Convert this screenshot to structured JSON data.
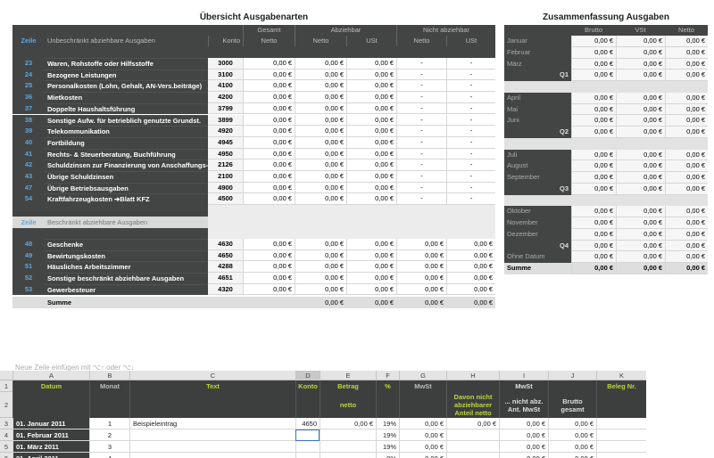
{
  "overview": {
    "title": "Übersicht Ausgabenarten",
    "group_headers": [
      "Gesamt",
      "Abziehbar",
      "Nicht abziehbar"
    ],
    "section1": {
      "zeile": "Zeile",
      "label": "Unbeschränkt abziehbare Ausgaben",
      "columns": [
        "Konto",
        "Netto",
        "Netto",
        "USt",
        "Netto",
        "USt"
      ],
      "rows": [
        [
          "23",
          "Waren, Rohstoffe oder Hilfsstoffe",
          "3000",
          "0,00 €",
          "0,00 €",
          "0,00 €",
          "-",
          "-"
        ],
        [
          "24",
          "Bezogene Leistungen",
          "3100",
          "0,00 €",
          "0,00 €",
          "0,00 €",
          "-",
          "-"
        ],
        [
          "25",
          "Personalkosten (Lohn, Gehalt, AN-Vers.beiträge)",
          "4100",
          "0,00 €",
          "0,00 €",
          "0,00 €",
          "-",
          "-"
        ],
        [
          "36",
          "Mietkosten",
          "4200",
          "0,00 €",
          "0,00 €",
          "0,00 €",
          "-",
          "-"
        ],
        [
          "37",
          "Doppelte Haushaltsführung",
          "3799",
          "0,00 €",
          "0,00 €",
          "0,00 €",
          "-",
          "-"
        ],
        [
          "38",
          "Sonstige Aufw. für betrieblich genutzte Grundst.",
          "3899",
          "0,00 €",
          "0,00 €",
          "0,00 €",
          "-",
          "-"
        ],
        [
          "39",
          "Telekommunikation",
          "4920",
          "0,00 €",
          "0,00 €",
          "0,00 €",
          "-",
          "-"
        ],
        [
          "40",
          "Fortbildung",
          "4945",
          "0,00 €",
          "0,00 €",
          "0,00 €",
          "-",
          "-"
        ],
        [
          "41",
          "Rechts- & Steuerberatung, Buchführung",
          "4950",
          "0,00 €",
          "0,00 €",
          "0,00 €",
          "-",
          "-"
        ],
        [
          "42",
          "Schuldzinsen zur Finanzierung von Anschaffungs-",
          "2126",
          "0,00 €",
          "0,00 €",
          "0,00 €",
          "-",
          "-"
        ],
        [
          "43",
          "Übrige Schuldzinsen",
          "2100",
          "0,00 €",
          "0,00 €",
          "0,00 €",
          "-",
          "-"
        ],
        [
          "47",
          "Übrige Betriebsausgaben",
          "4900",
          "0,00 €",
          "0,00 €",
          "0,00 €",
          "-",
          "-"
        ],
        [
          "54",
          "Kraftfahrzeugkosten    ➔Blatt KFZ",
          "4500",
          "0,00 €",
          "0,00 €",
          "0,00 €",
          "-",
          "-"
        ]
      ]
    },
    "section2": {
      "zeile": "Zeile",
      "label": "Beschränkt abziehbare Ausgaben",
      "rows": [
        [
          "48",
          "Geschenke",
          "4630",
          "0,00 €",
          "0,00 €",
          "0,00 €",
          "0,00 €",
          "0,00 €"
        ],
        [
          "49",
          "Bewirtungskosten",
          "4650",
          "0,00 €",
          "0,00 €",
          "0,00 €",
          "0,00 €",
          "0,00 €"
        ],
        [
          "51",
          "Häusliches Arbeitszimmer",
          "4288",
          "0,00 €",
          "0,00 €",
          "0,00 €",
          "0,00 €",
          "0,00 €"
        ],
        [
          "52",
          "Sonstige beschränkt abziehbare Ausgaben",
          "4651",
          "0,00 €",
          "0,00 €",
          "0,00 €",
          "0,00 €",
          "0,00 €"
        ],
        [
          "53",
          "Gewerbesteuer",
          "4320",
          "0,00 €",
          "0,00 €",
          "0,00 €",
          "0,00 €",
          "0,00 €"
        ]
      ]
    },
    "sum": {
      "label": "Summe",
      "values": [
        "0,00 €",
        "0,00 €",
        "0,00 €",
        "0,00 €"
      ]
    }
  },
  "summary": {
    "title": "Zusammenfassung Ausgaben",
    "columns": [
      "Brutto",
      "VSt",
      "Netto"
    ],
    "rows": [
      [
        "Januar",
        "0,00 €",
        "0,00 €",
        "0,00 €"
      ],
      [
        "Februar",
        "0,00 €",
        "0,00 €",
        "0,00 €"
      ],
      [
        "März",
        "0,00 €",
        "0,00 €",
        "0,00 €"
      ],
      [
        "Q1",
        "0,00 €",
        "0,00 €",
        "0,00 €"
      ],
      null,
      [
        "April",
        "0,00 €",
        "0,00 €",
        "0,00 €"
      ],
      [
        "Mai",
        "0,00 €",
        "0,00 €",
        "0,00 €"
      ],
      [
        "Juni",
        "0,00 €",
        "0,00 €",
        "0,00 €"
      ],
      [
        "Q2",
        "0,00 €",
        "0,00 €",
        "0,00 €"
      ],
      null,
      [
        "Juli",
        "0,00 €",
        "0,00 €",
        "0,00 €"
      ],
      [
        "August",
        "0,00 €",
        "0,00 €",
        "0,00 €"
      ],
      [
        "September",
        "0,00 €",
        "0,00 €",
        "0,00 €"
      ],
      [
        "Q3",
        "0,00 €",
        "0,00 €",
        "0,00 €"
      ],
      null,
      [
        "Oktober",
        "0,00 €",
        "0,00 €",
        "0,00 €"
      ],
      [
        "November",
        "0,00 €",
        "0,00 €",
        "0,00 €"
      ],
      [
        "Dezember",
        "0,00 €",
        "0,00 €",
        "0,00 €"
      ],
      [
        "Q4",
        "0,00 €",
        "0,00 €",
        "0,00 €"
      ],
      [
        "Ohne Datum",
        "0,00 €",
        "0,00 €",
        "0,00 €"
      ],
      [
        "Summe",
        "0,00 €",
        "0,00 €",
        "0,00 €"
      ]
    ]
  },
  "sheet": {
    "hint": "Neue Zeile einfügen mit ⌥↑ oder ⌥↓",
    "column_letters": [
      "A",
      "B",
      "C",
      "D",
      "E",
      "F",
      "G",
      "H",
      "I",
      "J",
      "K"
    ],
    "row_numbers": [
      "1",
      "2",
      "3",
      "4",
      "5",
      "6"
    ],
    "header1": [
      "Datum",
      "Monat",
      "Text",
      "Konto",
      "Betrag",
      "%",
      "MwSt",
      null,
      "MwSt",
      null,
      "Beleg Nr."
    ],
    "header2": [
      null,
      null,
      null,
      null,
      "netto",
      null,
      null,
      "Davon nicht abziehbarer Anteil netto",
      "... nicht abz. Ant. MwSt",
      "Brutto gesamt",
      null
    ],
    "rows": [
      [
        "01. Januar 2011",
        "1",
        "Beispieleintrag",
        "4650",
        "0,00 €",
        "19%",
        "0,00 €",
        "0,00 €",
        "0,00 €",
        "0,00 €",
        null
      ],
      [
        "01. Februar 2011",
        "2",
        null,
        null,
        null,
        "19%",
        "0,00 €",
        null,
        "0,00 €",
        "0,00 €",
        null
      ],
      [
        "01. März 2011",
        "3",
        null,
        null,
        null,
        "19%",
        "0,00 €",
        null,
        "0,00 €",
        "0,00 €",
        null
      ],
      [
        "01. April 2011",
        "4",
        null,
        null,
        null,
        "0%",
        "0,00 €",
        null,
        "0,00 €",
        "0,00 €",
        null
      ]
    ]
  }
}
